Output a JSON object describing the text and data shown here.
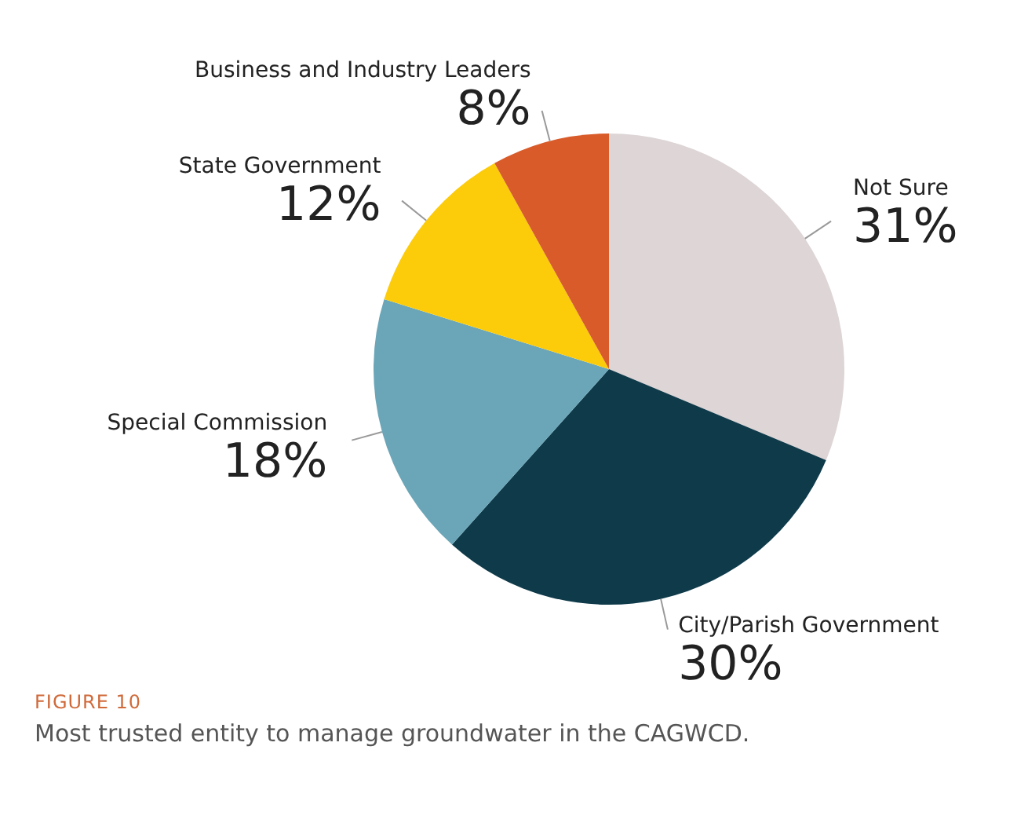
{
  "chart_data": {
    "type": "pie",
    "categories": [
      "Not Sure",
      "City/Parish Government",
      "Special Commission",
      "State Government",
      "Business and Industry Leaders"
    ],
    "values": [
      31,
      30,
      18,
      12,
      8
    ],
    "value_labels": [
      "31%",
      "30%",
      "18%",
      "12%",
      "8%"
    ],
    "colors": [
      "#ddd5d6",
      "#0f3a4a",
      "#6aa6b8",
      "#fccb0a",
      "#d95b2a"
    ],
    "annotations": [
      "FIGURE 10",
      "Most trusted entity to manage groundwater in the CAGWCD."
    ]
  }
}
